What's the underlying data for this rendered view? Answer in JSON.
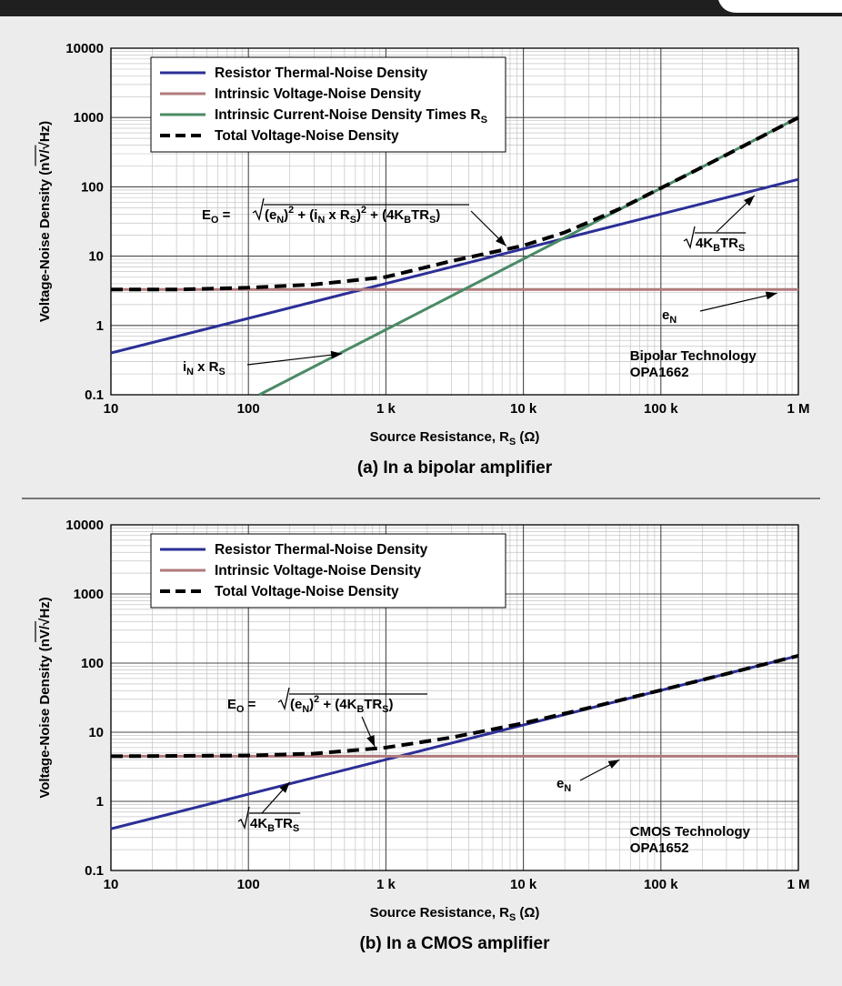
{
  "colors": {
    "thermal": "#2b2f96",
    "intrinsic_voltage": "#b07a7d",
    "current_times_rs": "#4a8a66",
    "total": "#000000",
    "background": "#ececec",
    "plot_background": "#ffffff",
    "header_bar": "#1f1f1f"
  },
  "chart_data": [
    {
      "type": "line",
      "caption": "(a) In a bipolar amplifier",
      "xlabel": "Source Resistance, R_S (Ω)",
      "ylabel": "Voltage-Noise Density (nV/√Hz)",
      "x_scale": "log",
      "y_scale": "log",
      "xlim": [
        10,
        1000000
      ],
      "ylim": [
        0.1,
        10000
      ],
      "x_ticks": [
        10,
        100,
        1000,
        10000,
        100000,
        1000000
      ],
      "x_tick_labels": [
        "10",
        "100",
        "1 k",
        "10 k",
        "100 k",
        "1 M"
      ],
      "y_ticks": [
        0.1,
        1,
        10,
        100,
        1000,
        10000
      ],
      "y_tick_labels": [
        "0.1",
        "1",
        "10",
        "100",
        "1000",
        "10000"
      ],
      "grid": true,
      "legend_position": "top-left",
      "technology_label": [
        "Bipolar Technology",
        "OPA1662"
      ],
      "series": [
        {
          "name": "Resistor Thermal-Noise Density",
          "color_key": "thermal",
          "dashed": false,
          "x": [
            10,
            1000000
          ],
          "y": [
            0.4,
            128
          ]
        },
        {
          "name": "Intrinsic Voltage-Noise Density",
          "color_key": "intrinsic_voltage",
          "dashed": false,
          "x": [
            10,
            1000000
          ],
          "y": [
            3.3,
            3.3
          ]
        },
        {
          "name": "Intrinsic Current-Noise Density Times R_S",
          "color_key": "current_times_rs",
          "dashed": false,
          "x": [
            120,
            1000000
          ],
          "y": [
            0.1,
            1000
          ]
        },
        {
          "name": "Total Voltage-Noise Density",
          "color_key": "total",
          "dashed": true,
          "x": [
            10,
            30,
            100,
            300,
            1000,
            3000,
            10000,
            20000,
            50000,
            100000,
            300000,
            1000000
          ],
          "y": [
            3.3,
            3.3,
            3.5,
            3.9,
            5.0,
            8.5,
            14.2,
            22,
            48,
            96,
            290,
            1000
          ]
        }
      ],
      "annotations": {
        "total_formula": "E_O = √((e_N)^2 + (i_N x R_S)^2 + (4K_BTR_S))",
        "thermal_label": "√(4K_BTR_S)",
        "en_label": "e_N",
        "current_label": "i_N x R_S"
      }
    },
    {
      "type": "line",
      "caption": "(b) In a CMOS amplifier",
      "xlabel": "Source Resistance, R_S (Ω)",
      "ylabel": "Voltage-Noise Density (nV/√Hz)",
      "x_scale": "log",
      "y_scale": "log",
      "xlim": [
        10,
        1000000
      ],
      "ylim": [
        0.1,
        10000
      ],
      "x_ticks": [
        10,
        100,
        1000,
        10000,
        100000,
        1000000
      ],
      "x_tick_labels": [
        "10",
        "100",
        "1 k",
        "10 k",
        "100 k",
        "1 M"
      ],
      "y_ticks": [
        0.1,
        1,
        10,
        100,
        1000,
        10000
      ],
      "y_tick_labels": [
        "0.1",
        "1",
        "10",
        "100",
        "1000",
        "10000"
      ],
      "grid": true,
      "legend_position": "top-left",
      "technology_label": [
        "CMOS Technology",
        "OPA1652"
      ],
      "series": [
        {
          "name": "Resistor Thermal-Noise Density",
          "color_key": "thermal",
          "dashed": false,
          "x": [
            10,
            1000000
          ],
          "y": [
            0.4,
            128
          ]
        },
        {
          "name": "Intrinsic Voltage-Noise Density",
          "color_key": "intrinsic_voltage",
          "dashed": false,
          "x": [
            10,
            1000000
          ],
          "y": [
            4.5,
            4.5
          ]
        },
        {
          "name": "Total Voltage-Noise Density",
          "color_key": "total",
          "dashed": true,
          "x": [
            10,
            100,
            300,
            1000,
            3000,
            10000,
            30000,
            100000,
            300000,
            1000000
          ],
          "y": [
            4.5,
            4.6,
            4.9,
            6.0,
            8.4,
            13.5,
            22.5,
            40.5,
            70,
            128
          ]
        }
      ],
      "annotations": {
        "total_formula": "E_O = √((e_N)^2 + (4K_BTR_S))",
        "thermal_label": "√(4K_BTR_S)",
        "en_label": "e_N"
      }
    }
  ]
}
